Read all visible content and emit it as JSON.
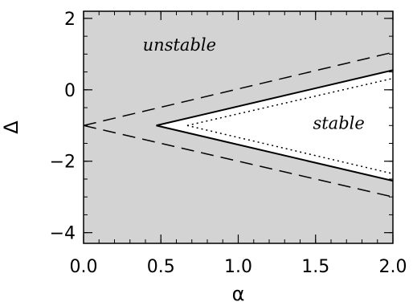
{
  "chart_data": {
    "type": "line",
    "xlabel": "α",
    "ylabel": "Δ",
    "xlim": [
      0.0,
      2.0
    ],
    "ylim": [
      -4.3,
      2.2
    ],
    "xticks": [
      "0.0",
      "0.5",
      "1.0",
      "1.5",
      "2.0"
    ],
    "xtick_values": [
      0.0,
      0.5,
      1.0,
      1.5,
      2.0
    ],
    "yticks": [
      "2",
      "0",
      "−2",
      "−4"
    ],
    "ytick_values": [
      2,
      0,
      -2,
      -4
    ],
    "background_color": "#d3d3d3",
    "stable_color": "#ffffff",
    "series": [
      {
        "style": "dashed",
        "segments": [
          {
            "x": [
              0.0,
              2.0
            ],
            "y": [
              -1.0,
              1.05
            ]
          },
          {
            "x": [
              0.0,
              2.0
            ],
            "y": [
              -1.0,
              -3.0
            ]
          }
        ]
      },
      {
        "style": "solid",
        "segments": [
          {
            "x": [
              0.47,
              2.0
            ],
            "y": [
              -1.0,
              0.55
            ]
          },
          {
            "x": [
              0.47,
              2.0
            ],
            "y": [
              -1.0,
              -2.55
            ]
          }
        ]
      },
      {
        "style": "dotted",
        "segments": [
          {
            "x": [
              0.67,
              2.0
            ],
            "y": [
              -1.0,
              0.32
            ]
          },
          {
            "x": [
              0.67,
              2.0
            ],
            "y": [
              -1.0,
              -2.35
            ]
          }
        ]
      }
    ],
    "stable_region": {
      "x": [
        0.47,
        2.0,
        2.0
      ],
      "y": [
        -1.0,
        0.55,
        -2.55
      ]
    },
    "annotations": [
      {
        "text": "unstable",
        "x": 0.62,
        "y": 1.1
      },
      {
        "text": "stable",
        "x": 1.65,
        "y": -1.1
      }
    ]
  }
}
